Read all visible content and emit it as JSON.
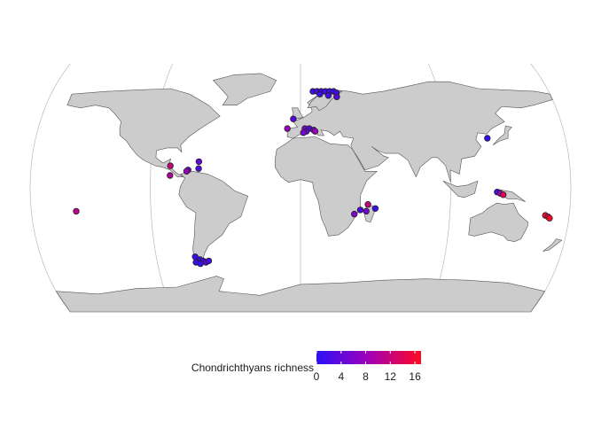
{
  "map": {
    "land_color": "#cccccc",
    "land_border": "#555555",
    "graticule_color": "#bbbbbb"
  },
  "legend": {
    "title": "Chondrichthyans richness",
    "ticks": [
      "0",
      "4",
      "8",
      "12",
      "16"
    ],
    "min": 0,
    "max": 16,
    "color_low": "#2b10f5",
    "color_high": "#ff0a22"
  },
  "chart_data": {
    "type": "scatter",
    "x_label": "",
    "y_label": "",
    "color_variable": "Chondrichthyans richness",
    "color_range": [
      0,
      17
    ],
    "points": [
      {
        "lon": 9,
        "lat": 70,
        "richness": 1
      },
      {
        "lon": 12,
        "lat": 70,
        "richness": 2
      },
      {
        "lon": 15,
        "lat": 70,
        "richness": 1
      },
      {
        "lon": 18,
        "lat": 70,
        "richness": 2
      },
      {
        "lon": 21,
        "lat": 70,
        "richness": 1
      },
      {
        "lon": 24,
        "lat": 70,
        "richness": 1
      },
      {
        "lon": 26,
        "lat": 69,
        "richness": 2
      },
      {
        "lon": 14,
        "lat": 68,
        "richness": 1
      },
      {
        "lon": 20,
        "lat": 67,
        "richness": 2
      },
      {
        "lon": 26,
        "lat": 66,
        "richness": 3
      },
      {
        "lon": -5,
        "lat": 50,
        "richness": 3
      },
      {
        "lon": -9,
        "lat": 43,
        "richness": 8
      },
      {
        "lon": 3,
        "lat": 43,
        "richness": 6
      },
      {
        "lon": 6,
        "lat": 43,
        "richness": 3
      },
      {
        "lon": 9,
        "lat": 42,
        "richness": 5
      },
      {
        "lon": 4,
        "lat": 41,
        "richness": 4
      },
      {
        "lon": 10,
        "lat": 41,
        "richness": 8
      },
      {
        "lon": 2,
        "lat": 40,
        "richness": 6
      },
      {
        "lon": 127,
        "lat": 36,
        "richness": 1
      },
      {
        "lon": -68,
        "lat": 19,
        "richness": 4
      },
      {
        "lon": -87,
        "lat": 16,
        "richness": 12
      },
      {
        "lon": -68,
        "lat": 14,
        "richness": 3
      },
      {
        "lon": -75,
        "lat": 13,
        "richness": 4
      },
      {
        "lon": -76,
        "lat": 12,
        "richness": 8
      },
      {
        "lon": -87,
        "lat": 9,
        "richness": 10
      },
      {
        "lon": -150,
        "lat": -17,
        "richness": 11
      },
      {
        "lon": 45,
        "lat": -12,
        "richness": 12
      },
      {
        "lon": 50,
        "lat": -15,
        "richness": 1
      },
      {
        "lon": 40,
        "lat": -16,
        "richness": 2
      },
      {
        "lon": 44,
        "lat": -17,
        "richness": 5
      },
      {
        "lon": 36,
        "lat": -19,
        "richness": 6
      },
      {
        "lon": 131,
        "lat": -3,
        "richness": 2
      },
      {
        "lon": 133,
        "lat": -4,
        "richness": 8
      },
      {
        "lon": 135,
        "lat": -5,
        "richness": 14
      },
      {
        "lon": 164,
        "lat": -20,
        "richness": 16
      },
      {
        "lon": 166,
        "lat": -21,
        "richness": 15
      },
      {
        "lon": 167,
        "lat": -22,
        "richness": 17
      },
      {
        "lon": -73,
        "lat": -50,
        "richness": 1
      },
      {
        "lon": -70,
        "lat": -52,
        "richness": 1
      },
      {
        "lon": -68,
        "lat": -53,
        "richness": 2
      },
      {
        "lon": -73,
        "lat": -54,
        "richness": 1
      },
      {
        "lon": -66,
        "lat": -54,
        "richness": 3
      },
      {
        "lon": -70,
        "lat": -55,
        "richness": 1
      },
      {
        "lon": -64,
        "lat": -53,
        "richness": 2
      }
    ]
  }
}
